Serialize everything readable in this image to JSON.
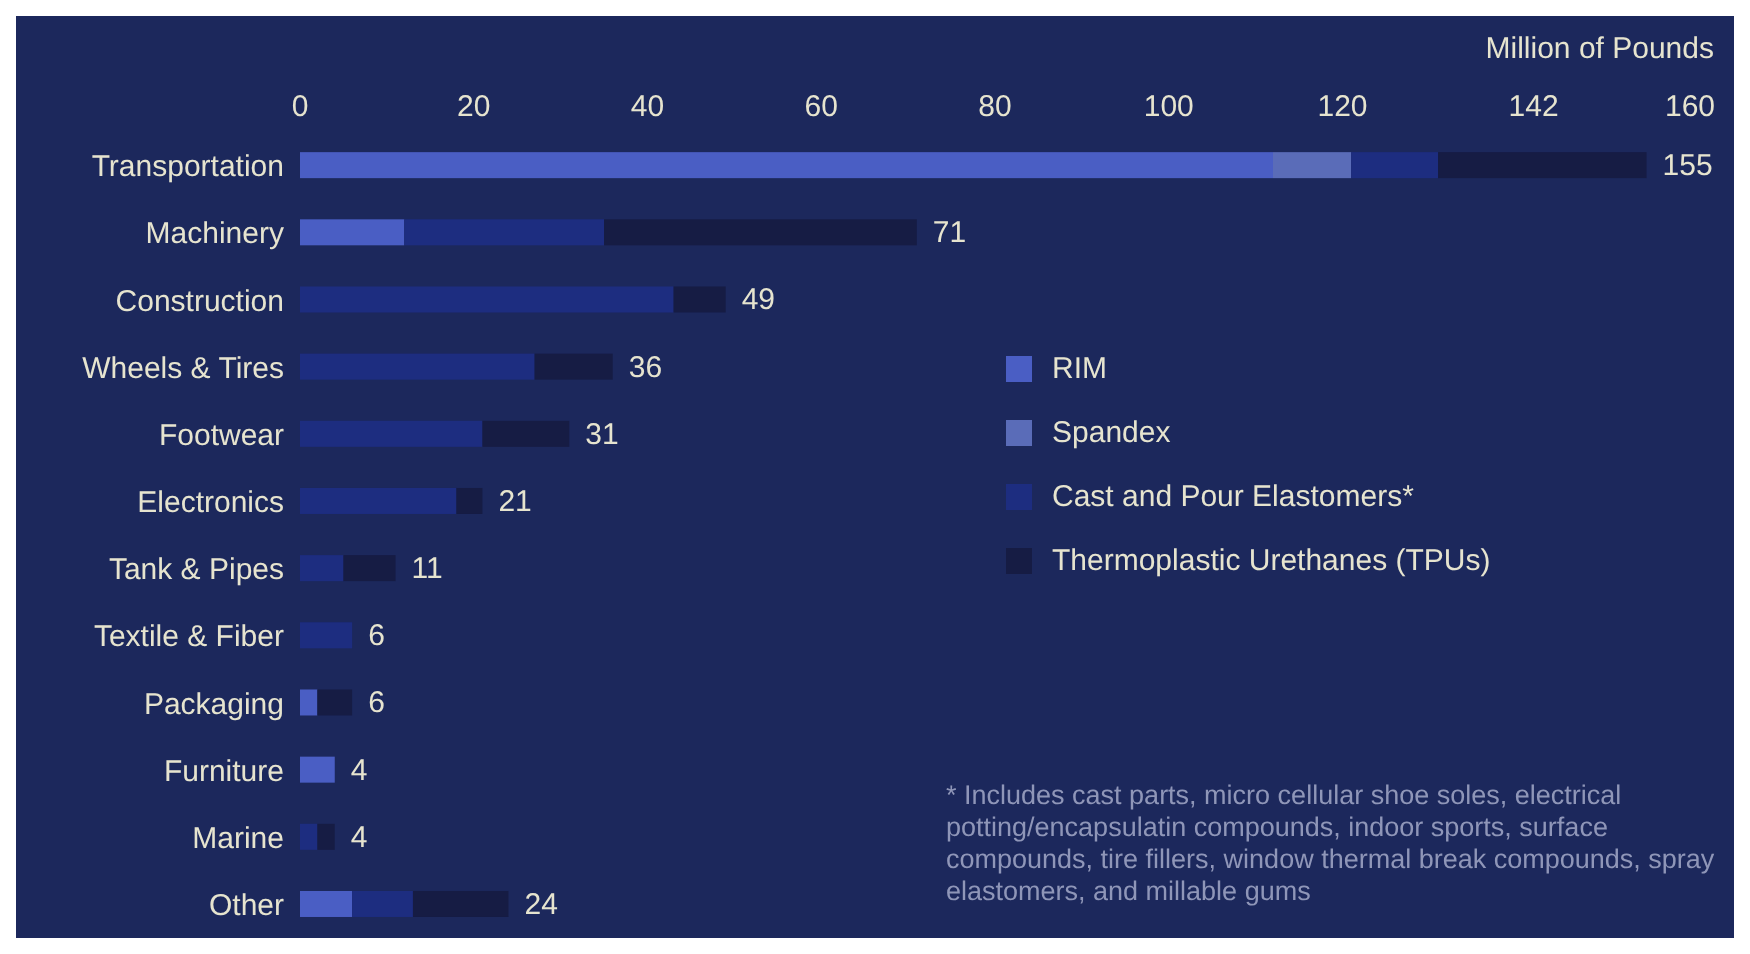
{
  "chart_data": {
    "type": "bar",
    "orientation": "horizontal",
    "stacked": true,
    "xlabel": "Million of Pounds",
    "categories": [
      "Transportation",
      "Machinery",
      "Construction",
      "Wheels & Tires",
      "Footwear",
      "Electronics",
      "Tank & Pipes",
      "Textile & Fiber",
      "Packaging",
      "Furniture",
      "Marine",
      "Other"
    ],
    "series": [
      {
        "name": "RIM",
        "color": "#4a5ec4",
        "values": [
          112,
          12,
          0,
          0,
          0,
          0,
          0,
          0,
          2,
          4,
          0,
          6
        ]
      },
      {
        "name": "Spandex",
        "color": "#5a6cb8",
        "values": [
          9,
          0,
          0,
          0,
          0,
          0,
          0,
          0,
          0,
          0,
          0,
          0
        ]
      },
      {
        "name": "Cast and Pour Elastomers*",
        "color": "#1d2d80",
        "values": [
          10,
          23,
          43,
          27,
          21,
          18,
          5,
          6,
          0,
          0,
          2,
          7
        ]
      },
      {
        "name": "Thermoplastic Urethanes (TPUs)",
        "color": "#161c44",
        "values": [
          24,
          36,
          6,
          9,
          10,
          3,
          6,
          0,
          4,
          0,
          2,
          11
        ]
      }
    ],
    "totals": [
      "155",
      "71",
      "49",
      "36",
      "31",
      "21",
      "11",
      "6",
      "6",
      "4",
      "4",
      "24"
    ],
    "xlim": [
      0,
      160
    ],
    "xticks": [
      0,
      20,
      40,
      60,
      80,
      100,
      120,
      142,
      160
    ],
    "legend": "right",
    "grid": false,
    "annotations": [
      "* Includes cast parts, micro cellular shoe soles, electrical potting/encapsulatin compounds, indoor sports, surface compounds, tire fillers, window thermal break compounds, spray elastomers, and millable gums"
    ]
  }
}
